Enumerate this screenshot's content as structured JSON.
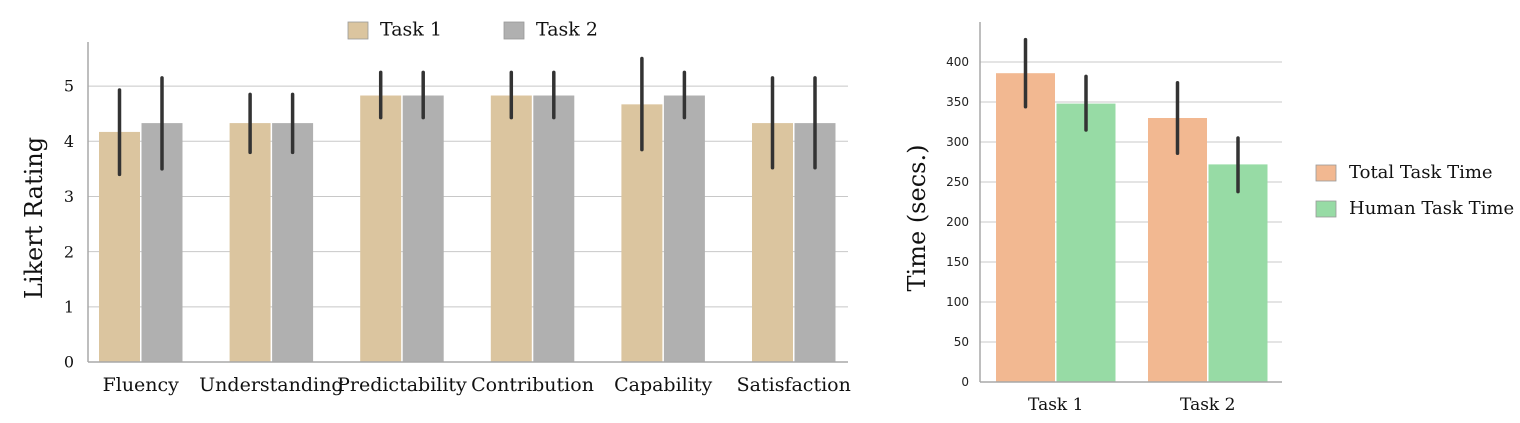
{
  "chart_data": [
    {
      "type": "bar",
      "title": "",
      "xlabel": "",
      "ylabel": "Likert Rating",
      "ylim": [
        0,
        5.8
      ],
      "yticks": [
        0,
        1,
        2,
        3,
        4,
        5
      ],
      "grid": true,
      "legend_position": "top-center",
      "categories": [
        "Fluency",
        "Understanding",
        "Predictability",
        "Contribution",
        "Capability",
        "Satisfaction"
      ],
      "series": [
        {
          "name": "Task 1",
          "color": "#dbc59f",
          "values": [
            4.17,
            4.33,
            4.83,
            4.83,
            4.67,
            4.33
          ],
          "err_low": [
            3.4,
            3.8,
            4.43,
            4.43,
            3.85,
            3.52
          ],
          "err_high": [
            4.93,
            4.85,
            5.25,
            5.25,
            5.5,
            5.15
          ]
        },
        {
          "name": "Task 2",
          "color": "#b0b0b0",
          "values": [
            4.33,
            4.33,
            4.83,
            4.83,
            4.83,
            4.33
          ],
          "err_low": [
            3.5,
            3.8,
            4.43,
            4.43,
            4.43,
            3.52
          ],
          "err_high": [
            5.15,
            4.85,
            5.25,
            5.25,
            5.25,
            5.15
          ]
        }
      ]
    },
    {
      "type": "bar",
      "title": "",
      "xlabel": "",
      "ylabel": "Time (secs.)",
      "ylim": [
        0,
        450
      ],
      "yticks": [
        0,
        50,
        100,
        150,
        200,
        250,
        300,
        350,
        400
      ],
      "grid": true,
      "legend_position": "outside-right",
      "categories": [
        "Task 1",
        "Task 2"
      ],
      "series": [
        {
          "name": "Total Task Time",
          "color": "#f2b891",
          "values": [
            386,
            330
          ],
          "err_low": [
            344,
            286
          ],
          "err_high": [
            428,
            374
          ]
        },
        {
          "name": "Human Task Time",
          "color": "#97dba5",
          "values": [
            348,
            272
          ],
          "err_low": [
            315,
            238
          ],
          "err_high": [
            382,
            305
          ]
        }
      ]
    }
  ]
}
